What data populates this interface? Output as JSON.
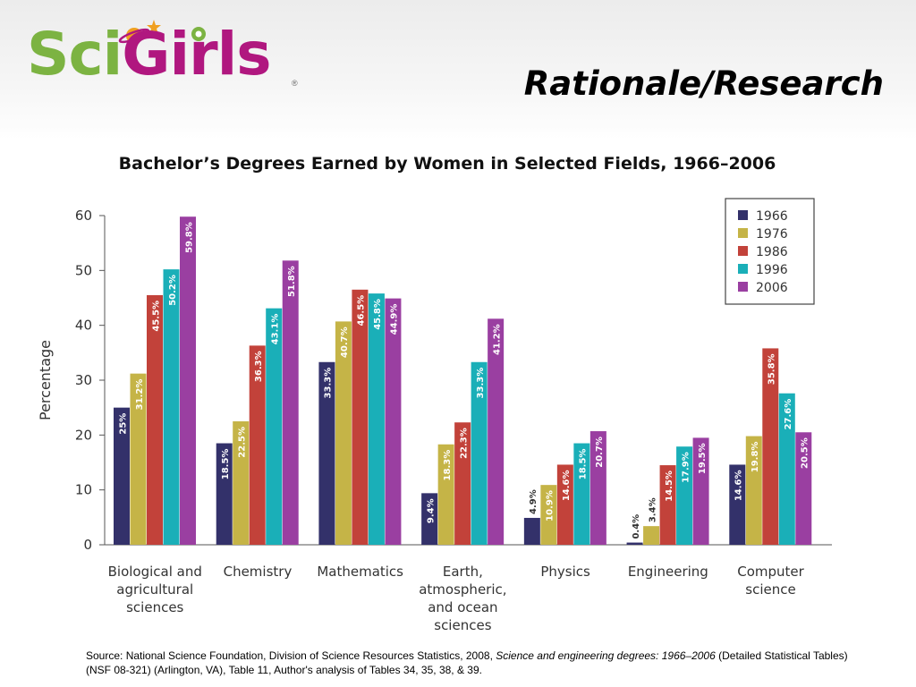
{
  "header": {
    "logo_sci": "Sci",
    "logo_girls": "Girls",
    "logo_registered": "®",
    "page_title": "Rationale/Research"
  },
  "colors": {
    "logo_green": "#7cb342",
    "logo_magenta": "#b0177f"
  },
  "chart_data": {
    "type": "bar",
    "title": "Bachelor’s Degrees Earned by Women in Selected Fields, 1966–2006",
    "ylabel": "Percentage",
    "xlabel": "",
    "ylim": [
      0,
      60
    ],
    "yticks": [
      0,
      10,
      20,
      30,
      40,
      50,
      60
    ],
    "grid": false,
    "legend_position": "top-right",
    "categories": [
      [
        "Biological and",
        "agricultural",
        "sciences"
      ],
      [
        "Chemistry"
      ],
      [
        "Mathematics"
      ],
      [
        "Earth,",
        "atmospheric,",
        "and ocean",
        "sciences"
      ],
      [
        "Physics"
      ],
      [
        "Engineering"
      ],
      [
        "Computer",
        "science"
      ]
    ],
    "series": [
      {
        "name": "1966",
        "color": "#33316a",
        "values": [
          25,
          18.5,
          33.3,
          9.4,
          4.9,
          0.4,
          14.6
        ],
        "labels": [
          "25%",
          "18.5%",
          "33.3%",
          "9.4%",
          "4.9%",
          "0.4%",
          "14.6%"
        ]
      },
      {
        "name": "1976",
        "color": "#c5b447",
        "values": [
          31.2,
          22.5,
          40.7,
          18.3,
          10.9,
          3.4,
          19.8
        ],
        "labels": [
          "31.2%",
          "22.5%",
          "40.7%",
          "18.3%",
          "10.9%",
          "3.4%",
          "19.8%"
        ]
      },
      {
        "name": "1986",
        "color": "#c2423a",
        "values": [
          45.5,
          36.3,
          46.5,
          22.3,
          14.6,
          14.5,
          35.8
        ],
        "labels": [
          "45.5%",
          "36.3%",
          "46.5%",
          "22.3%",
          "14.6%",
          "14.5%",
          "35.8%"
        ]
      },
      {
        "name": "1996",
        "color": "#1aafb8",
        "values": [
          50.2,
          43.1,
          45.8,
          33.3,
          18.5,
          17.9,
          27.6
        ],
        "labels": [
          "50.2%",
          "43.1%",
          "45.8%",
          "33.3%",
          "18.5%",
          "17.9%",
          "27.6%"
        ]
      },
      {
        "name": "2006",
        "color": "#9a3fa1",
        "values": [
          59.8,
          51.8,
          44.9,
          41.2,
          20.7,
          19.5,
          20.5
        ],
        "labels": [
          "59.8%",
          "51.8%",
          "44.9%",
          "41.2%",
          "20.7%",
          "19.5%",
          "20.5%"
        ]
      }
    ]
  },
  "source": {
    "prefix": "Source: National Science Foundation, Division of Science Resources Statistics, 2008, ",
    "italic": "Science and engineering degrees: 1966–2006",
    "suffix": " (Detailed Statistical Tables) (NSF 08-321) (Arlington, VA), Table 11, Author's analysis of Tables 34, 35, 38, & 39."
  }
}
